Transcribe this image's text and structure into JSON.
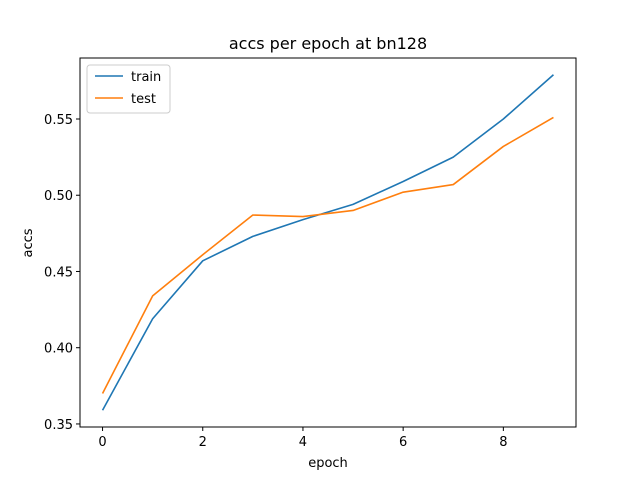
{
  "chart_data": {
    "type": "line",
    "title": "accs per epoch at bn128",
    "xlabel": "epoch",
    "ylabel": "accs",
    "x": [
      0,
      1,
      2,
      3,
      4,
      5,
      6,
      7,
      8,
      9
    ],
    "series": [
      {
        "name": "train",
        "color": "#1f77b4",
        "values": [
          0.359,
          0.419,
          0.457,
          0.473,
          0.484,
          0.494,
          0.509,
          0.525,
          0.55,
          0.579
        ]
      },
      {
        "name": "test",
        "color": "#ff7f0e",
        "values": [
          0.37,
          0.434,
          0.461,
          0.487,
          0.486,
          0.49,
          0.502,
          0.507,
          0.532,
          0.551
        ]
      }
    ],
    "xlim": [
      -0.45,
      9.45
    ],
    "ylim": [
      0.348,
      0.59
    ],
    "xticks": [
      0,
      2,
      4,
      6,
      8
    ],
    "yticks": [
      0.35,
      0.4,
      0.45,
      0.5,
      0.55
    ],
    "xtick_labels": [
      "0",
      "2",
      "4",
      "6",
      "8"
    ],
    "ytick_labels": [
      "0.35",
      "0.40",
      "0.45",
      "0.50",
      "0.55"
    ],
    "grid": false,
    "legend": "top-left"
  }
}
